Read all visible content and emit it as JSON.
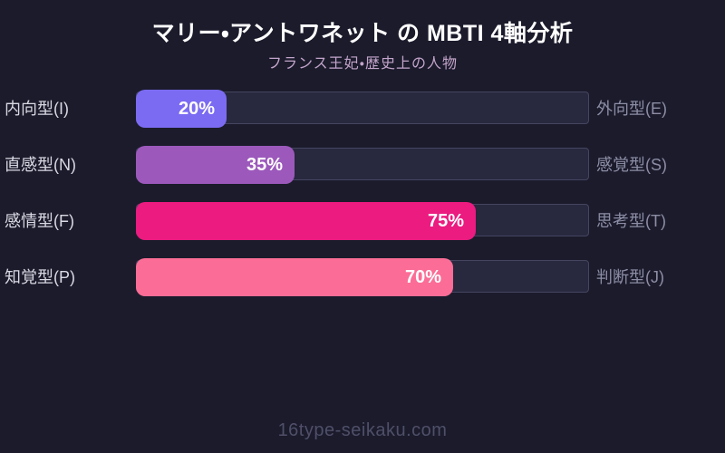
{
  "header": {
    "title": "マリー・アントワネット の MBTI 4軸分析",
    "subtitle": "フランス王妃・歴史上の人物"
  },
  "chart_data": {
    "type": "bar",
    "orientation": "horizontal",
    "title": "マリー・アントワネット の MBTI 4軸分析",
    "subtitle": "フランス王妃・歴史上の人物",
    "xlim": [
      0,
      100
    ],
    "grid": false,
    "legend": false,
    "axes": [
      {
        "left": "内向型(I)",
        "right": "外向型(E)",
        "value": 20,
        "value_label": "20%",
        "color": "#7b6bf2"
      },
      {
        "left": "直感型(N)",
        "right": "感覚型(S)",
        "value": 35,
        "value_label": "35%",
        "color": "#9c59bb"
      },
      {
        "left": "感情型(F)",
        "right": "思考型(T)",
        "value": 75,
        "value_label": "75%",
        "color": "#eb1b80"
      },
      {
        "left": "知覚型(P)",
        "right": "判断型(J)",
        "value": 70,
        "value_label": "70%",
        "color": "#fb6d96"
      }
    ],
    "colors": {
      "background": "#1b1b2c",
      "track": "#28283f",
      "track_border": "#454560",
      "title_text": "#ffffff",
      "subtitle_text": "#c3a4ca",
      "left_label_text": "#d9d9e3",
      "right_label_text": "#8d8da5",
      "value_text": "#ffffff",
      "footer_text": "#4f4f69"
    }
  },
  "footer": {
    "site": "16type-seikaku.com"
  }
}
